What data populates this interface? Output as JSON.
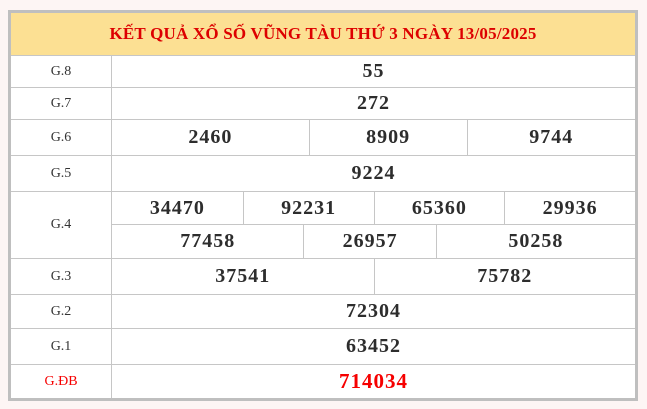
{
  "title": "KẾT QUẢ XỔ SỐ VŨNG TÀU THỨ 3 NGÀY 13/05/2025",
  "colors": {
    "page_bg": "#fdf5f4",
    "header_bg": "#fce093",
    "title_red": "#dd0000",
    "special_red": "#f60000",
    "border_outer": "#bfbfbf",
    "border_inner": "#c6c6c6",
    "cell_text": "#2d2d2d"
  },
  "table": {
    "rows": [
      {
        "id": "g8",
        "label": "G.8",
        "lines": [
          [
            "55"
          ]
        ]
      },
      {
        "id": "g7",
        "label": "G.7",
        "lines": [
          [
            "272"
          ]
        ]
      },
      {
        "id": "g6",
        "label": "G.6",
        "lines": [
          [
            "2460",
            "8909",
            "9744"
          ]
        ]
      },
      {
        "id": "g5",
        "label": "G.5",
        "lines": [
          [
            "9224"
          ]
        ]
      },
      {
        "id": "g4",
        "label": "G.4",
        "lines": [
          [
            "34470",
            "92231",
            "65360",
            "29936"
          ],
          [
            "77458",
            "26957",
            "50258"
          ]
        ]
      },
      {
        "id": "g3",
        "label": "G.3",
        "lines": [
          [
            "37541",
            "75782"
          ]
        ]
      },
      {
        "id": "g2",
        "label": "G.2",
        "lines": [
          [
            "72304"
          ]
        ]
      },
      {
        "id": "g1",
        "label": "G.1",
        "lines": [
          [
            "63452"
          ]
        ]
      },
      {
        "id": "gdb",
        "label": "G.ĐB",
        "lines": [
          [
            "714034"
          ]
        ],
        "special": true
      }
    ]
  }
}
